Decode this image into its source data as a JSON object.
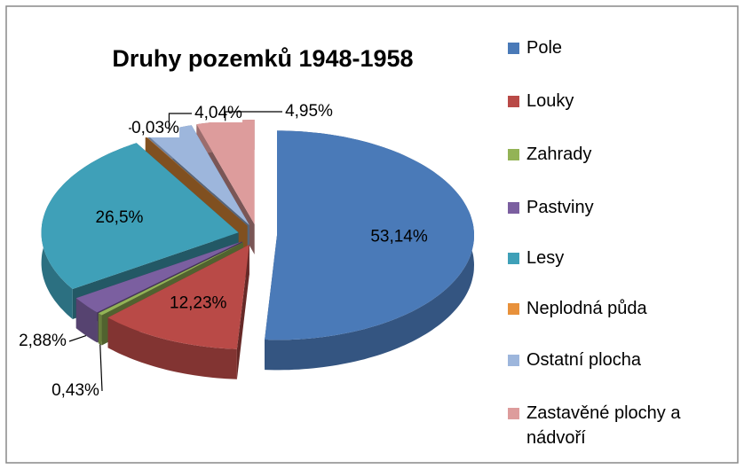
{
  "chart_data": {
    "type": "pie3d",
    "title": "Druhy pozemků 1948-1958",
    "categories": [
      "Pole",
      "Louky",
      "Zahrady",
      "Pastviny",
      "Lesy",
      "Neplodná půda",
      "Ostatní plocha",
      "Zastavěné plochy a nádvoří"
    ],
    "values": [
      53.14,
      12.23,
      0.43,
      2.88,
      26.5,
      0.03,
      4.04,
      4.95
    ],
    "value_labels": [
      "53,14%",
      "12,23%",
      "0,43%",
      "2,88%",
      "26,5%",
      "0,03%",
      "4,04%",
      "4,95%"
    ],
    "colors": [
      "#4a7ab8",
      "#b94a47",
      "#93b356",
      "#7b5fa0",
      "#3fa0b8",
      "#e8913b",
      "#9db6dc",
      "#dd9c9c"
    ],
    "legend": "right"
  }
}
